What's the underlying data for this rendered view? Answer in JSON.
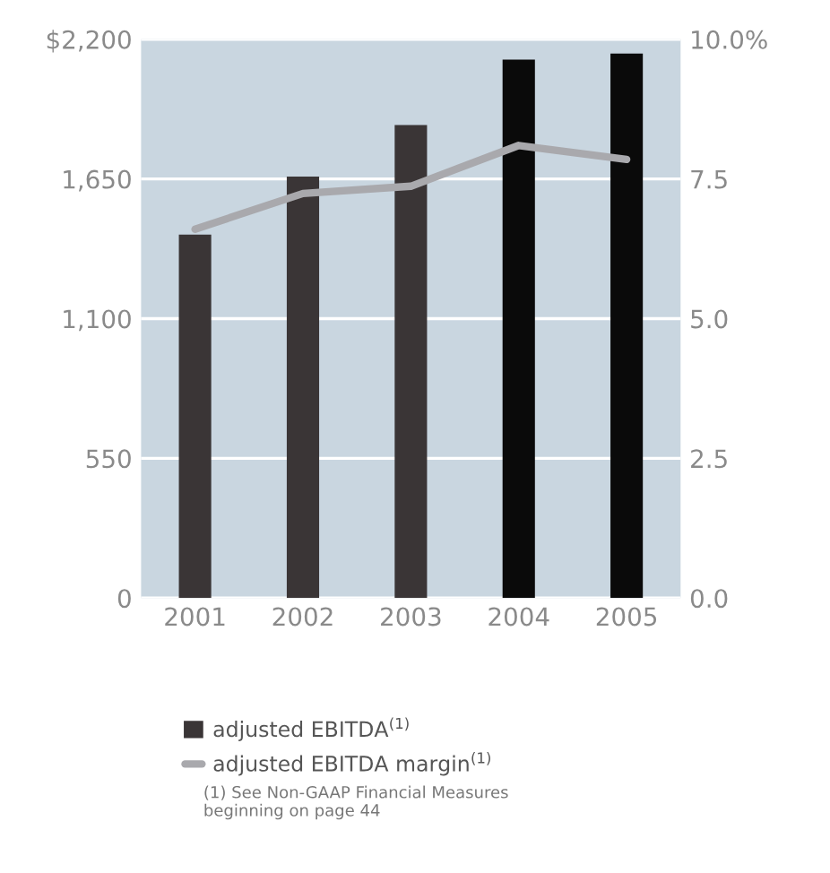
{
  "chart_data": {
    "type": "bar",
    "categories": [
      "2001",
      "2002",
      "2003",
      "2004",
      "2005"
    ],
    "series": [
      {
        "name": "adjusted EBITDA$^{(1)}$",
        "color": "#3a3536",
        "colors": [
          "#3a3536",
          "#3a3536",
          "#3a3536",
          "#0a0a0a",
          "#0a0a0a"
        ],
        "values": [
          1431,
          1659,
          1862,
          2120,
          2144
        ]
      },
      {
        "name": "adjusted EBITDA margin$^{(1)}$",
        "type": "line",
        "axis": "y2",
        "color": "#a9a9ad",
        "values": [
          6.6,
          7.24,
          7.37,
          8.1,
          7.85
        ]
      }
    ],
    "ylim": [
      0,
      2200
    ],
    "yticks": [
      0,
      {
        "value": 550,
        "label": "550"
      },
      {
        "value": 1100,
        "label": "1,100"
      },
      {
        "value": 1650,
        "label": "1,650"
      },
      {
        "value": 2200,
        "label": "$2,200"
      }
    ],
    "y2lim": [
      0,
      10
    ],
    "y2ticks": [
      {
        "value": 0,
        "label": "0.0"
      },
      {
        "value": 2.5,
        "label": "2.5"
      },
      {
        "value": 5,
        "label": "5.0"
      },
      {
        "value": 7.5,
        "label": "7.5"
      },
      {
        "value": 10,
        "label": "10.0%"
      }
    ],
    "grid": "y",
    "legend": "bottom",
    "annotations": [
      "(1) See Non-GAAP Financial Measures\nbeginning on page 44"
    ]
  }
}
